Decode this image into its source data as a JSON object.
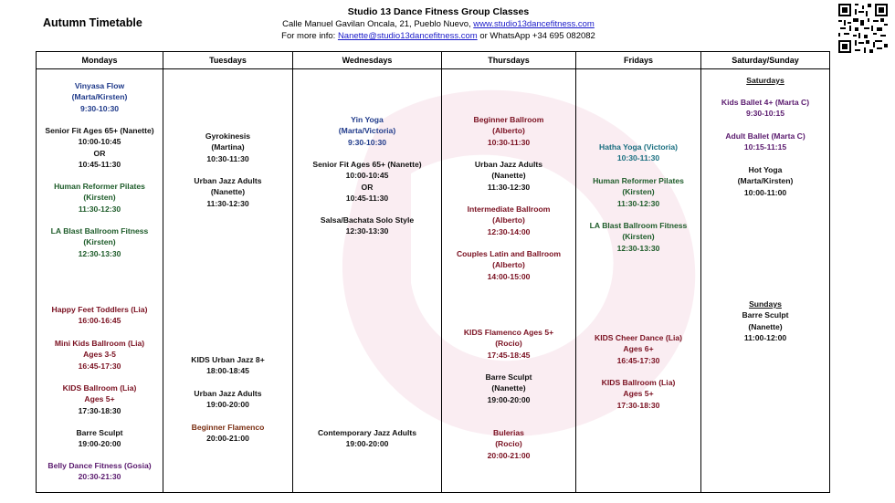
{
  "page_title": "Autumn Timetable",
  "header": {
    "studio": "Studio 13 Dance Fitness Group Classes",
    "address": "Calle Manuel Gavilan Oncala, 21, Pueblo Nuevo,",
    "website": "www.studio13dancefitness.com",
    "info_prefix": "For more info:",
    "email": "Nanette@studio13dancefitness.com",
    "whatsapp": "or WhatsApp +34 695 082082"
  },
  "colors": {
    "blue": "#1f3a8a",
    "green": "#1e5c2a",
    "maroon": "#7a1020",
    "brown": "#7a2e12",
    "purple": "#5a1a6e",
    "teal": "#1a6f80"
  },
  "days": {
    "mon": "Mondays",
    "tue": "Tuesdays",
    "wed": "Wednesdays",
    "thu": "Thursdays",
    "fri": "Fridays",
    "sat": "Saturday/Sunday"
  },
  "mon": {
    "vinyasa": {
      "title": "Vinyasa Flow",
      "teacher": "(Marta/Kirsten)",
      "time": "9:30-10:30"
    },
    "senior": {
      "title": "Senior Fit Ages 65+ (Nanette)",
      "time1": "10:00-10:45",
      "or": "OR",
      "time2": "10:45-11:30"
    },
    "reformer": {
      "title": "Human Reformer Pilates",
      "teacher": "(Kirsten)",
      "time": "11:30-12:30"
    },
    "lablast": {
      "title": "LA Blast Ballroom Fitness",
      "teacher": "(Kirsten)",
      "time": "12:30-13:30"
    },
    "happyfeet": {
      "title": "Happy Feet Toddlers (Lia)",
      "time": "16:00-16:45"
    },
    "minikids": {
      "title": "Mini Kids Ballroom (Lia)",
      "ages": "Ages 3-5",
      "time": "16:45-17:30"
    },
    "kidsballroom": {
      "title": "KIDS Ballroom (Lia)",
      "ages": "Ages 5+",
      "time": "17:30-18:30"
    },
    "barre": {
      "title": "Barre Sculpt",
      "time": "19:00-20:00"
    },
    "belly": {
      "title": "Belly Dance Fitness  (Gosia)",
      "time": "20:30-21:30"
    }
  },
  "tue": {
    "gyro": {
      "title": "Gyrokinesis",
      "teacher": "(Martina)",
      "time": "10:30-11:30"
    },
    "urban": {
      "title": "Urban Jazz Adults",
      "teacher": "(Nanette)",
      "time": "11:30-12:30"
    },
    "kidsurban": {
      "title": "KIDS Urban Jazz 8+",
      "time": "18:00-18:45"
    },
    "urban2": {
      "title": "Urban Jazz Adults",
      "time": "19:00-20:00"
    },
    "flamenco": {
      "title": "Beginner Flamenco",
      "time": "20:00-21:00"
    }
  },
  "wed": {
    "yin": {
      "title": "Yin Yoga",
      "teacher": "(Marta/Victoria)",
      "time": "9:30-10:30"
    },
    "senior": {
      "title": "Senior Fit Ages 65+  (Nanette)",
      "time1": "10:00-10:45",
      "or": "OR",
      "time2": "10:45-11:30"
    },
    "salsa": {
      "title": "Salsa/Bachata Solo Style",
      "time": "12:30-13:30"
    },
    "contemp": {
      "title": "Contemporary Jazz Adults",
      "time": "19:00-20:00"
    }
  },
  "thu": {
    "beginner": {
      "title": "Beginner Ballroom",
      "teacher": "(Alberto)",
      "time": "10:30-11:30"
    },
    "urban": {
      "title": "Urban Jazz Adults",
      "teacher": "(Nanette)",
      "time": "11:30-12:30"
    },
    "intermediate": {
      "title": "Intermediate Ballroom",
      "teacher": "(Alberto)",
      "time": "12:30-14:00"
    },
    "couples": {
      "title": "Couples Latin and Ballroom",
      "teacher": "(Alberto)",
      "time": "14:00-15:00"
    },
    "kidsflamenco": {
      "title": "KIDS Flamenco Ages 5+",
      "teacher": "(Rocio)",
      "time": "17:45-18:45"
    },
    "barre": {
      "title": "Barre Sculpt",
      "teacher": "(Nanette)",
      "time": "19:00-20:00"
    },
    "bulerias": {
      "title": "Bulerias",
      "teacher": "(Rocio)",
      "time": "20:00-21:00"
    }
  },
  "fri": {
    "hatha": {
      "title": "Hatha Yoga (Victoria)",
      "time": "10:30-11:30"
    },
    "reformer": {
      "title": "Human Reformer Pilates",
      "teacher": "(Kirsten)",
      "time": "11:30-12:30"
    },
    "lablast": {
      "title": "LA Blast Ballroom Fitness",
      "teacher": "(Kirsten)",
      "time": "12:30-13:30"
    },
    "cheer": {
      "title": "KIDS Cheer Dance (Lia)",
      "ages": "Ages 6+",
      "time": "16:45-17:30"
    },
    "kidsballroom": {
      "title": "KIDS Ballroom  (Lia)",
      "ages": "Ages 5+",
      "time": "17:30-18:30"
    }
  },
  "sat": {
    "saturdays": "Saturdays",
    "kidsballet": {
      "title": "Kids Ballet 4+ (Marta C)",
      "time": "9:30-10:15"
    },
    "adultballet": {
      "title": "Adult Ballet (Marta C)",
      "time": "10:15-11:15"
    },
    "hotyoga": {
      "title": "Hot Yoga",
      "teacher": "(Marta/Kirsten)",
      "time": "10:00-11:00"
    },
    "sundays": "Sundays",
    "barre": {
      "title": "Barre Sculpt",
      "teacher": "(Nanette)",
      "time": "11:00-12:00"
    }
  }
}
